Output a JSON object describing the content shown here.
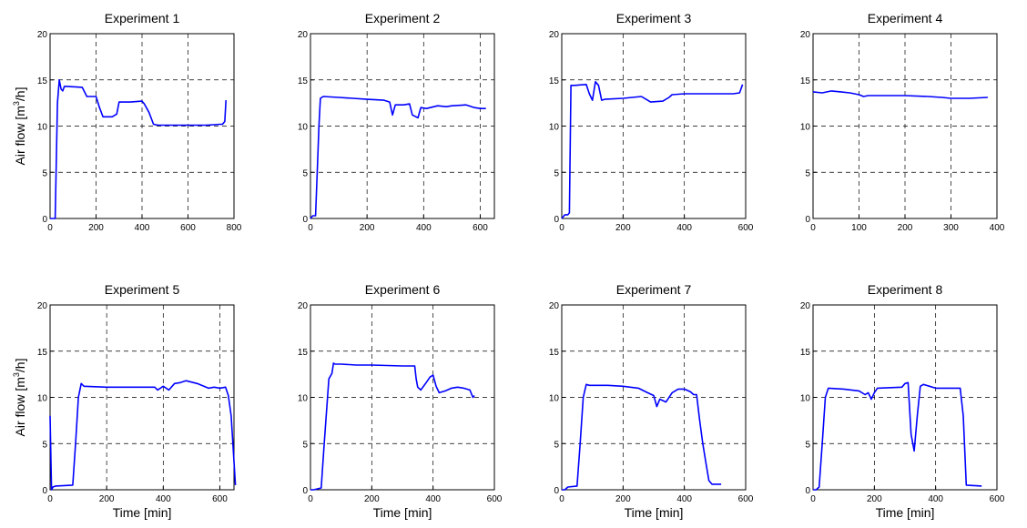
{
  "figure": {
    "ylabel_main": "Air flow [m",
    "ylabel_sup": "3",
    "ylabel_tail": "/h]",
    "xlabel": "Time [min]",
    "line_color": "#0000ff"
  },
  "chart_data": [
    {
      "type": "line",
      "title": "Experiment 1",
      "xlim": [
        0,
        800
      ],
      "ylim": [
        0,
        20
      ],
      "xticks": [
        0,
        200,
        400,
        600,
        800
      ],
      "yticks": [
        0,
        5,
        10,
        15,
        20
      ],
      "grid": true,
      "x": [
        0,
        12,
        22,
        32,
        40,
        48,
        55,
        62,
        75,
        140,
        160,
        200,
        215,
        230,
        270,
        290,
        300,
        350,
        400,
        410,
        430,
        450,
        470,
        550,
        600,
        680,
        740,
        750,
        760,
        765
      ],
      "y": [
        0,
        0,
        0,
        12.5,
        15,
        14,
        13.8,
        14.3,
        14.3,
        14.2,
        13.2,
        13.2,
        12,
        11,
        11,
        11.3,
        12.6,
        12.6,
        12.7,
        12.4,
        11.5,
        10.2,
        10.1,
        10.1,
        10.1,
        10.1,
        10.2,
        10.2,
        10.5,
        12.8
      ]
    },
    {
      "type": "line",
      "title": "Experiment 2",
      "xlim": [
        0,
        650
      ],
      "ylim": [
        0,
        20
      ],
      "xticks": [
        0,
        200,
        400,
        600
      ],
      "yticks": [
        0,
        5,
        10,
        15,
        20
      ],
      "grid": true,
      "x": [
        0,
        8,
        18,
        25,
        30,
        35,
        45,
        100,
        150,
        200,
        260,
        280,
        290,
        300,
        330,
        350,
        360,
        380,
        390,
        410,
        450,
        480,
        500,
        550,
        580,
        600,
        620
      ],
      "y": [
        0,
        0.3,
        0.3,
        6,
        10,
        13,
        13.2,
        13.1,
        13,
        12.9,
        12.8,
        12.6,
        11.2,
        12.3,
        12.3,
        12.4,
        11.2,
        10.9,
        12,
        11.9,
        12.2,
        12.1,
        12.2,
        12.3,
        12,
        11.9,
        11.9
      ]
    },
    {
      "type": "line",
      "title": "Experiment 3",
      "xlim": [
        0,
        600
      ],
      "ylim": [
        0,
        20
      ],
      "xticks": [
        0,
        200,
        400,
        600
      ],
      "yticks": [
        0,
        5,
        10,
        15,
        20
      ],
      "grid": true,
      "x": [
        0,
        10,
        20,
        25,
        30,
        40,
        80,
        90,
        100,
        110,
        120,
        130,
        140,
        200,
        260,
        280,
        290,
        330,
        350,
        360,
        400,
        500,
        560,
        580,
        590
      ],
      "y": [
        0,
        0.4,
        0.4,
        0.6,
        14.4,
        14.4,
        14.5,
        13.5,
        12.8,
        14.8,
        14.4,
        12.8,
        12.9,
        13,
        13.2,
        12.8,
        12.6,
        12.7,
        13.1,
        13.4,
        13.5,
        13.5,
        13.5,
        13.6,
        14.5
      ]
    },
    {
      "type": "line",
      "title": "Experiment 4",
      "xlim": [
        0,
        400
      ],
      "ylim": [
        0,
        20
      ],
      "xticks": [
        0,
        100,
        200,
        300,
        400
      ],
      "yticks": [
        0,
        5,
        10,
        15,
        20
      ],
      "grid": true,
      "x": [
        0,
        20,
        40,
        60,
        80,
        100,
        110,
        120,
        150,
        200,
        250,
        280,
        300,
        340,
        380
      ],
      "y": [
        13.7,
        13.6,
        13.8,
        13.7,
        13.6,
        13.4,
        13.2,
        13.3,
        13.3,
        13.3,
        13.2,
        13.1,
        13,
        13,
        13.1
      ]
    },
    {
      "type": "line",
      "title": "Experiment 5",
      "xlim": [
        0,
        650
      ],
      "ylim": [
        0,
        20
      ],
      "xticks": [
        0,
        200,
        400,
        600
      ],
      "yticks": [
        0,
        5,
        10,
        15,
        20
      ],
      "grid": true,
      "x": [
        0,
        5,
        10,
        20,
        80,
        90,
        100,
        110,
        120,
        200,
        300,
        370,
        380,
        400,
        420,
        440,
        460,
        480,
        520,
        560,
        580,
        600,
        620,
        630,
        640,
        655
      ],
      "y": [
        8,
        0,
        0.3,
        0.4,
        0.5,
        5,
        10,
        11.5,
        11.2,
        11.1,
        11.1,
        11.1,
        10.8,
        11.2,
        10.8,
        11.5,
        11.6,
        11.8,
        11.5,
        11,
        11.1,
        11,
        11.1,
        10.2,
        8,
        0.5
      ]
    },
    {
      "type": "line",
      "title": "Experiment 6",
      "xlim": [
        0,
        600
      ],
      "ylim": [
        0,
        20
      ],
      "xticks": [
        0,
        200,
        400,
        600
      ],
      "yticks": [
        0,
        5,
        10,
        15,
        20
      ],
      "grid": true,
      "x": [
        0,
        10,
        35,
        45,
        60,
        70,
        75,
        80,
        100,
        150,
        200,
        300,
        340,
        345,
        350,
        360,
        380,
        390,
        400,
        410,
        420,
        440,
        460,
        480,
        500,
        520,
        530,
        535
      ],
      "y": [
        0,
        0,
        0.2,
        5,
        12,
        12.6,
        13.7,
        13.6,
        13.6,
        13.5,
        13.5,
        13.4,
        13.4,
        12,
        11.1,
        10.8,
        11.7,
        12.2,
        12.4,
        11.2,
        10.5,
        10.7,
        11,
        11.1,
        11,
        10.8,
        10,
        10.2
      ]
    },
    {
      "type": "line",
      "title": "Experiment 7",
      "xlim": [
        0,
        600
      ],
      "ylim": [
        0,
        20
      ],
      "xticks": [
        0,
        200,
        400,
        600
      ],
      "yticks": [
        0,
        5,
        10,
        15,
        20
      ],
      "grid": true,
      "x": [
        0,
        10,
        20,
        50,
        60,
        70,
        80,
        90,
        150,
        200,
        250,
        280,
        300,
        310,
        320,
        340,
        360,
        380,
        400,
        420,
        430,
        440,
        450,
        460,
        470,
        480,
        490,
        520
      ],
      "y": [
        0,
        0,
        0.3,
        0.4,
        5,
        10,
        11.4,
        11.3,
        11.3,
        11.2,
        11,
        10.5,
        10.2,
        9,
        9.8,
        9.5,
        10.5,
        10.9,
        10.9,
        10.6,
        10.3,
        10.3,
        7.5,
        5,
        3,
        1,
        0.6,
        0.6
      ]
    },
    {
      "type": "line",
      "title": "Experiment 8",
      "xlim": [
        0,
        600
      ],
      "ylim": [
        0,
        20
      ],
      "xticks": [
        0,
        200,
        400,
        600
      ],
      "yticks": [
        0,
        5,
        10,
        15,
        20
      ],
      "grid": true,
      "x": [
        0,
        10,
        20,
        30,
        40,
        50,
        100,
        150,
        170,
        180,
        190,
        200,
        210,
        290,
        300,
        310,
        320,
        330,
        340,
        350,
        360,
        380,
        400,
        460,
        480,
        490,
        500,
        550
      ],
      "y": [
        0,
        0,
        0.3,
        5,
        10,
        11,
        10.9,
        10.7,
        10.3,
        10.5,
        9.8,
        10.5,
        11,
        11.1,
        11.5,
        11.6,
        6,
        4.2,
        8,
        11.2,
        11.4,
        11.2,
        11,
        11,
        11,
        8,
        0.5,
        0.4
      ]
    }
  ]
}
